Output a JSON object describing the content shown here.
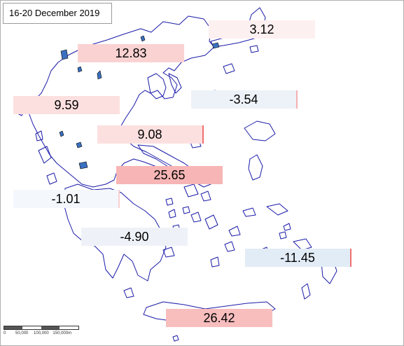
{
  "title": "16-20 December 2019",
  "colors": {
    "coastline": "#1a1aa8",
    "lake": "#3a70c0",
    "positive_fill": "#fad2d2",
    "strong_positive_fill": "#f7b5b5",
    "negative_fill": "#e2ecf6",
    "edge": "#f07070"
  },
  "regions": [
    {
      "value": "3.12"
    },
    {
      "value": "12.83"
    },
    {
      "value": "9.59"
    },
    {
      "value": "-3.54"
    },
    {
      "value": "9.08"
    },
    {
      "value": "25.65"
    },
    {
      "value": "-1.01"
    },
    {
      "value": "-4.90"
    },
    {
      "value": "-11.45"
    },
    {
      "value": "26.42"
    }
  ],
  "scale_bar": {
    "ticks": [
      "0",
      "50,000",
      "100,000",
      "150,000m"
    ]
  }
}
